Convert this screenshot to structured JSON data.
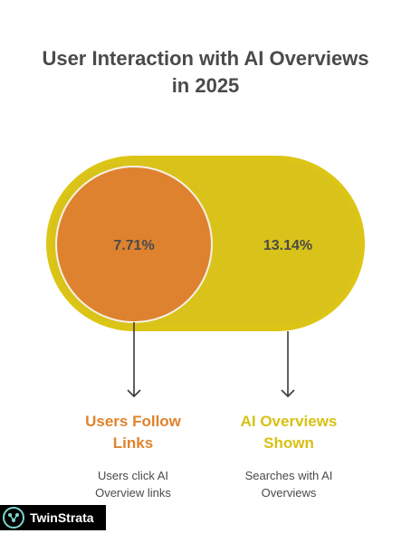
{
  "title": "User Interaction with AI Overviews\nin 2025",
  "colors": {
    "outer_fill": "#DCC515",
    "outer_inner": "#D9C31A",
    "inner_fill": "#DF8230",
    "inner_border": "#F6F1E8",
    "arrow": "#3a3a3a",
    "text_dark": "#4a4a4a",
    "left_title": "#E0832D",
    "right_title": "#D8C014"
  },
  "outer": {
    "value": "13.14%"
  },
  "inner": {
    "value": "7.71%"
  },
  "labels": {
    "left": {
      "title": "Users Follow\nLinks",
      "description": "Users click AI\nOverview links"
    },
    "right": {
      "title": "AI Overviews\nShown",
      "description": "Searches with AI\nOverviews"
    }
  },
  "logo": {
    "text": "TwinStrata",
    "icon": "brain-icon"
  }
}
